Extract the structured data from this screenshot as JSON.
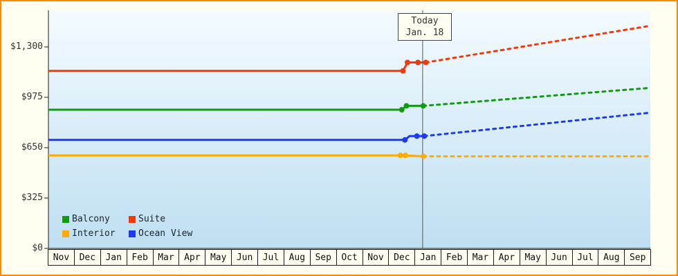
{
  "page": {
    "background": "#fffef0",
    "border_color": "#ff8a00",
    "axis_color": "#1a1a1a",
    "text_color": "#333333",
    "today_line_color": "#555555"
  },
  "chart_data": {
    "type": "line",
    "title": "",
    "y_axis": {
      "max_value": 1300,
      "ticks": [
        {
          "value": 0,
          "label": "$0"
        },
        {
          "value": 325,
          "label": "$325"
        },
        {
          "value": 650,
          "label": "$650"
        },
        {
          "value": 975,
          "label": "$975"
        },
        {
          "value": 1300,
          "label": "$1,300"
        }
      ]
    },
    "months": [
      "Nov",
      "Dec",
      "Jan",
      "Feb",
      "Mar",
      "Apr",
      "May",
      "Jun",
      "Jul",
      "Aug",
      "Sep",
      "Oct",
      "Nov",
      "Dec",
      "Jan",
      "Feb",
      "Mar",
      "Apr",
      "May",
      "Jun",
      "Jul",
      "Aug",
      "Sep"
    ],
    "today": {
      "x": 14.3,
      "line1": "Today",
      "line2": "Jan. 18"
    },
    "plot_gradient": {
      "top": "#f4fbff",
      "bottom": "#bedff2"
    },
    "series": [
      {
        "name": "Suite",
        "color": "#f4380b",
        "history": [
          [
            0,
            1145
          ],
          [
            13.55,
            1145
          ],
          [
            13.72,
            1200
          ],
          [
            14.42,
            1200
          ]
        ],
        "markers": [
          [
            13.55,
            1145
          ],
          [
            13.72,
            1200
          ],
          [
            14.12,
            1200
          ],
          [
            14.42,
            1200
          ]
        ],
        "forecast": [
          [
            14.42,
            1200
          ],
          [
            22.95,
            1435
          ]
        ]
      },
      {
        "name": "Balcony",
        "color": "#129a12",
        "history": [
          [
            0,
            895
          ],
          [
            13.5,
            895
          ],
          [
            13.68,
            920
          ],
          [
            14.32,
            920
          ]
        ],
        "markers": [
          [
            13.5,
            895
          ],
          [
            13.68,
            920
          ],
          [
            14.32,
            920
          ]
        ],
        "forecast": [
          [
            14.32,
            920
          ],
          [
            22.95,
            1035
          ]
        ]
      },
      {
        "name": "Ocean View",
        "color": "#1d3bee",
        "history": [
          [
            0,
            700
          ],
          [
            13.62,
            700
          ],
          [
            13.8,
            725
          ],
          [
            14.36,
            725
          ]
        ],
        "markers": [
          [
            13.62,
            700
          ],
          [
            14.08,
            725
          ],
          [
            14.36,
            725
          ]
        ],
        "forecast": [
          [
            14.36,
            725
          ],
          [
            22.95,
            875
          ]
        ]
      },
      {
        "name": "Interior",
        "color": "#ffaa00",
        "history": [
          [
            0,
            600
          ],
          [
            13.45,
            600
          ],
          [
            13.64,
            600
          ],
          [
            14.33,
            594
          ]
        ],
        "markers": [
          [
            13.45,
            600
          ],
          [
            13.64,
            600
          ],
          [
            14.33,
            594
          ]
        ],
        "forecast": [
          [
            14.33,
            594
          ],
          [
            22.95,
            594
          ]
        ]
      }
    ],
    "legend": [
      {
        "label": "Balcony",
        "color": "#129a12"
      },
      {
        "label": "Suite",
        "color": "#f4380b"
      },
      {
        "label": "Interior",
        "color": "#ffaa00"
      },
      {
        "label": "Ocean View",
        "color": "#1d3bee"
      }
    ]
  }
}
